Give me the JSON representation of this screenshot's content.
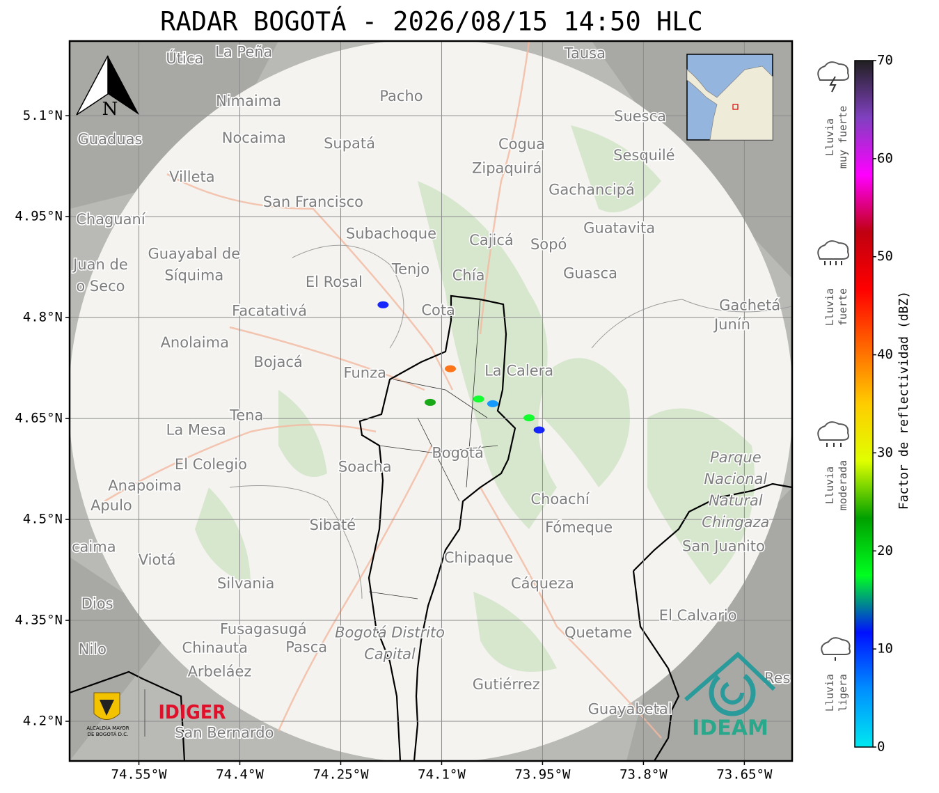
{
  "chart_data": {
    "type": "map",
    "title": "RADAR BOGOTÁ - 2026/08/15 14:50 HLC",
    "xlim": [
      -74.653,
      -73.579
    ],
    "ylim": [
      4.141,
      5.211
    ],
    "xticks": [
      {
        "value": -74.55,
        "label": "74.55°W"
      },
      {
        "value": -74.4,
        "label": "74.4°W"
      },
      {
        "value": -74.25,
        "label": "74.25°W"
      },
      {
        "value": -74.1,
        "label": "74.1°W"
      },
      {
        "value": -73.95,
        "label": "73.95°W"
      },
      {
        "value": -73.8,
        "label": "73.8°W"
      },
      {
        "value": -73.65,
        "label": "73.65°W"
      }
    ],
    "yticks": [
      {
        "value": 5.1,
        "label": "5.1°N"
      },
      {
        "value": 4.95,
        "label": "4.95°N"
      },
      {
        "value": 4.8,
        "label": "4.8°N"
      },
      {
        "value": 4.65,
        "label": "4.65°N"
      },
      {
        "value": 4.5,
        "label": "4.5°N"
      },
      {
        "value": 4.35,
        "label": "4.35°N"
      },
      {
        "value": 4.2,
        "label": "4.2°N"
      }
    ],
    "grid": true,
    "north": "N",
    "places": [
      {
        "name": "Útica",
        "lon": -74.482,
        "lat": 5.184
      },
      {
        "name": "La Peña",
        "lon": -74.394,
        "lat": 5.194
      },
      {
        "name": "Tausa",
        "lon": -73.887,
        "lat": 5.192
      },
      {
        "name": "Pacho",
        "lon": -74.16,
        "lat": 5.128
      },
      {
        "name": "Nimaima",
        "lon": -74.387,
        "lat": 5.121
      },
      {
        "name": "Guaduas",
        "lon": -74.593,
        "lat": 5.064
      },
      {
        "name": "Nocaima",
        "lon": -74.379,
        "lat": 5.066
      },
      {
        "name": "Supatá",
        "lon": -74.237,
        "lat": 5.058
      },
      {
        "name": "Cogua",
        "lon": -73.981,
        "lat": 5.057
      },
      {
        "name": "Suesca",
        "lon": -73.805,
        "lat": 5.098
      },
      {
        "name": "Sesquilé",
        "lon": -73.799,
        "lat": 5.04
      },
      {
        "name": "Zipaquirá",
        "lon": -74.003,
        "lat": 5.021
      },
      {
        "name": "Villeta",
        "lon": -74.471,
        "lat": 5.008
      },
      {
        "name": "Gachancipá",
        "lon": -73.877,
        "lat": 4.989
      },
      {
        "name": "San Francisco",
        "lon": -74.291,
        "lat": 4.971
      },
      {
        "name": "Chaguaní",
        "lon": -74.592,
        "lat": 4.945
      },
      {
        "name": "Guatavita",
        "lon": -73.836,
        "lat": 4.932
      },
      {
        "name": "Subachoque",
        "lon": -74.175,
        "lat": 4.924
      },
      {
        "name": "Cajicá",
        "lon": -74.026,
        "lat": 4.914
      },
      {
        "name": "Sopó",
        "lon": -73.941,
        "lat": 4.908
      },
      {
        "name": [
          "Guayabal de",
          "Síquima"
        ],
        "lon": -74.468,
        "lat": 4.878
      },
      {
        "name": [
          "Juan de",
          "o Seco"
        ],
        "lon": -74.607,
        "lat": 4.862
      },
      {
        "name": "Tenjo",
        "lon": -74.146,
        "lat": 4.871
      },
      {
        "name": "Chía",
        "lon": -74.06,
        "lat": 4.862
      },
      {
        "name": "Guasca",
        "lon": -73.879,
        "lat": 4.865
      },
      {
        "name": "El Rosal",
        "lon": -74.26,
        "lat": 4.852
      },
      {
        "name": "Facatativá",
        "lon": -74.356,
        "lat": 4.809
      },
      {
        "name": "Cota",
        "lon": -74.105,
        "lat": 4.81
      },
      {
        "name": "Gachetá",
        "lon": -73.642,
        "lat": 4.817
      },
      {
        "name": "Junín",
        "lon": -73.668,
        "lat": 4.789
      },
      {
        "name": "Anolaima",
        "lon": -74.467,
        "lat": 4.762
      },
      {
        "name": "Bojacá",
        "lon": -74.343,
        "lat": 4.733
      },
      {
        "name": "Funza",
        "lon": -74.214,
        "lat": 4.717
      },
      {
        "name": "La Calera",
        "lon": -73.985,
        "lat": 4.72
      },
      {
        "name": "Tena",
        "lon": -74.39,
        "lat": 4.654
      },
      {
        "name": "La Mesa",
        "lon": -74.465,
        "lat": 4.632
      },
      {
        "name": "Bogotá",
        "lon": -74.076,
        "lat": 4.598
      },
      {
        "name": "El Colegio",
        "lon": -74.443,
        "lat": 4.581
      },
      {
        "name": "Soacha",
        "lon": -74.214,
        "lat": 4.577
      },
      {
        "name": "Anapoima",
        "lon": -74.541,
        "lat": 4.549
      },
      {
        "name": "Apulo",
        "lon": -74.591,
        "lat": 4.52
      },
      {
        "name": "Choachí",
        "lon": -73.924,
        "lat": 4.529
      },
      {
        "name": [
          "Parque",
          "Nacional",
          "Natural",
          "Chingaza"
        ],
        "lon": -73.663,
        "lat": 4.543
      },
      {
        "name": "Sibaté",
        "lon": -74.262,
        "lat": 4.491
      },
      {
        "name": "Fómeque",
        "lon": -73.896,
        "lat": 4.487
      },
      {
        "name": "San Juanito",
        "lon": -73.681,
        "lat": 4.459
      },
      {
        "name": "caima",
        "lon": -74.617,
        "lat": 4.458
      },
      {
        "name": "Viotá",
        "lon": -74.523,
        "lat": 4.439
      },
      {
        "name": "Chipaque",
        "lon": -74.045,
        "lat": 4.442
      },
      {
        "name": "Silvania",
        "lon": -74.391,
        "lat": 4.404
      },
      {
        "name": "Cáqueza",
        "lon": -73.95,
        "lat": 4.404
      },
      {
        "name": "Dios",
        "lon": -74.612,
        "lat": 4.374
      },
      {
        "name": "El Calvario",
        "lon": -73.719,
        "lat": 4.356
      },
      {
        "name": "Fusagasugá",
        "lon": -74.365,
        "lat": 4.336
      },
      {
        "name": [
          "Bogotá Distrito",
          "Capital"
        ],
        "lon": -74.177,
        "lat": 4.315
      },
      {
        "name": "Quetame",
        "lon": -73.867,
        "lat": 4.331
      },
      {
        "name": "Nilo",
        "lon": -74.619,
        "lat": 4.306
      },
      {
        "name": "Chinauta",
        "lon": -74.437,
        "lat": 4.308
      },
      {
        "name": "Pasca",
        "lon": -74.301,
        "lat": 4.309
      },
      {
        "name": "Arbeláez",
        "lon": -74.43,
        "lat": 4.273
      },
      {
        "name": "Gutiérrez",
        "lon": -74.004,
        "lat": 4.254
      },
      {
        "name": "Guayabetal",
        "lon": -73.82,
        "lat": 4.217
      },
      {
        "name": "San Bernardo",
        "lon": -74.423,
        "lat": 4.182
      },
      {
        "name": "Res",
        "lon": -73.601,
        "lat": 4.263
      }
    ],
    "echoes": [
      {
        "lon": -74.187,
        "lat": 4.819,
        "dbz": 12
      },
      {
        "lon": -73.97,
        "lat": 4.651,
        "dbz": 15
      },
      {
        "lon": -73.955,
        "lat": 4.633,
        "dbz": 9
      },
      {
        "lon": -74.087,
        "lat": 4.724,
        "dbz": 40
      },
      {
        "lon": -74.117,
        "lat": 4.674,
        "dbz": 25
      },
      {
        "lon": -74.024,
        "lat": 4.672,
        "dbz": 6
      },
      {
        "lon": -74.045,
        "lat": 4.679,
        "dbz": 18
      }
    ],
    "colorbar": {
      "label": "Factor de reflectividad (dBZ)",
      "lim": [
        0,
        70
      ],
      "ticks": [
        0,
        10,
        20,
        30,
        40,
        50,
        60,
        70
      ],
      "colors": [
        "#00e8f0",
        "#0090ff",
        "#0010ff",
        "#00ff20",
        "#00a000",
        "#e0ff00",
        "#ffcc00",
        "#ff6600",
        "#ff0000",
        "#c00010",
        "#ff00ff",
        "#8040c0",
        "#202020"
      ]
    },
    "legend": [
      [
        "Lluvia",
        "muy fuerte"
      ],
      [
        "Lluvia",
        "fuerte"
      ],
      [
        "Lluvia",
        "moderada"
      ],
      [
        "Lluvia",
        "ligera"
      ]
    ],
    "logos": {
      "alcaldia": [
        "ALCALDÍA MAYOR",
        "DE BOGOTÁ D.C."
      ],
      "idiger": "IDIGER",
      "ideam": "IDEAM"
    }
  }
}
